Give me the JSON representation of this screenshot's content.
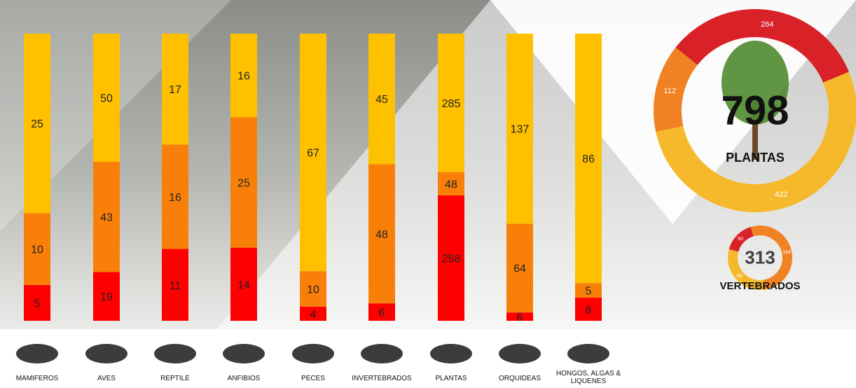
{
  "chart_data": [
    {
      "type": "bar",
      "stacking": "percent",
      "categories": [
        "MAMIFEROS",
        "AVES",
        "REPTILE",
        "ANFIBIOS",
        "PECES",
        "INVERTEBRADOS",
        "PLANTAS",
        "ORQUIDEAS",
        "HONGOS, ALGAS & LIQUENES"
      ],
      "series": [
        {
          "color": "#ff0000",
          "values": [
            5,
            19,
            11,
            14,
            4,
            6,
            258,
            6,
            8
          ]
        },
        {
          "color": "#f98008",
          "values": [
            10,
            43,
            16,
            25,
            10,
            48,
            48,
            64,
            5
          ]
        },
        {
          "color": "#ffc000",
          "values": [
            25,
            50,
            17,
            16,
            67,
            45,
            285,
            137,
            86
          ]
        }
      ]
    },
    {
      "type": "donut",
      "total": 798,
      "label": "PLANTAS",
      "values": [
        264,
        422,
        112
      ],
      "colors": [
        "#d92128",
        "#f6b92b",
        "#f08224"
      ]
    },
    {
      "type": "donut",
      "total": 313,
      "label": "VERTEBRADOS",
      "values": [
        50,
        164,
        99
      ],
      "colors": [
        "#d92128",
        "#f08224",
        "#f6b92b"
      ]
    }
  ]
}
